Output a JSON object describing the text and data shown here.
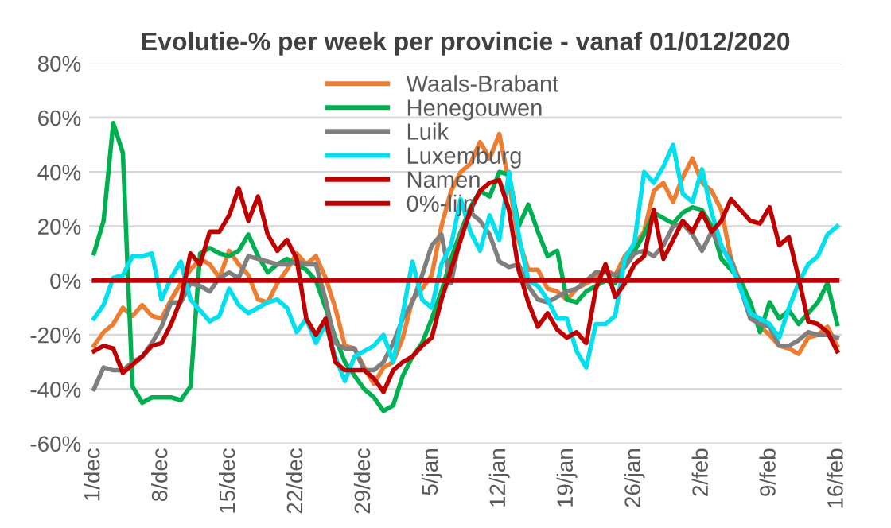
{
  "chart_data": {
    "type": "line",
    "title": "Evolutie-% per week per provincie - vanaf 01/012/2020",
    "categories": [
      "1/dec",
      null,
      null,
      null,
      null,
      null,
      null,
      "8/dec",
      null,
      null,
      null,
      null,
      null,
      null,
      "15/dec",
      null,
      null,
      null,
      null,
      null,
      null,
      "22/dec",
      null,
      null,
      null,
      null,
      null,
      null,
      "29/dec",
      null,
      null,
      null,
      null,
      null,
      null,
      "5/jan",
      null,
      null,
      null,
      null,
      null,
      null,
      "12/jan",
      null,
      null,
      null,
      null,
      null,
      null,
      "19/jan",
      null,
      null,
      null,
      null,
      null,
      null,
      "26/jan",
      null,
      null,
      null,
      null,
      null,
      null,
      "2/feb",
      null,
      null,
      null,
      null,
      null,
      null,
      "9/feb",
      null,
      null,
      null,
      null,
      null,
      null,
      "16/feb"
    ],
    "series": [
      {
        "name": "Waals-Brabant",
        "color": "#ed7d31",
        "values": [
          -24,
          -19,
          -16,
          -10,
          -13,
          -9,
          -13,
          -14,
          -7,
          -1,
          4,
          8,
          6,
          1,
          11,
          6,
          2,
          -7,
          -8,
          -1,
          4,
          10,
          6,
          9,
          1,
          -10,
          -24,
          -25,
          -32,
          -38,
          -32,
          -30,
          -21,
          -7,
          -3,
          2,
          20,
          33,
          40,
          43,
          51,
          45,
          54,
          36,
          15,
          4,
          4,
          -3,
          -4,
          -7,
          -3,
          -1,
          1,
          4,
          2,
          9,
          13,
          18,
          33,
          36,
          29,
          38,
          45,
          36,
          33,
          26,
          8,
          -1,
          -10,
          -17,
          -20,
          -24,
          -25,
          -27,
          -21,
          -20,
          -17,
          -24
        ]
      },
      {
        "name": "Henegouwen",
        "color": "#00b050",
        "values": [
          10,
          22,
          58,
          47,
          -39,
          -45,
          -43,
          -43,
          -43,
          -44,
          -39,
          10,
          12,
          10,
          9,
          11,
          17,
          9,
          3,
          6,
          8,
          6,
          4,
          0,
          -10,
          -21,
          -30,
          -35,
          -40,
          -43,
          -48,
          -46,
          -35,
          -28,
          -23,
          -14,
          -4,
          8,
          18,
          27,
          33,
          31,
          40,
          39,
          20,
          28,
          18,
          9,
          11,
          -7,
          -8,
          -4,
          -2,
          0,
          -1,
          6,
          11,
          17,
          25,
          23,
          21,
          25,
          27,
          26,
          20,
          8,
          4,
          0,
          -8,
          -19,
          -8,
          -14,
          -11,
          -16,
          -12,
          -8,
          -1,
          -16
        ]
      },
      {
        "name": "Luik",
        "color": "#7f7f7f",
        "values": [
          -40,
          -32,
          -33,
          -33,
          -30,
          -28,
          -23,
          -17,
          -8,
          -8,
          -1,
          -2,
          -4,
          1,
          3,
          1,
          9,
          8,
          7,
          6,
          6,
          7,
          6,
          6,
          -7,
          -23,
          -25,
          -25,
          -33,
          -33,
          -30,
          -23,
          -14,
          -8,
          2,
          13,
          17,
          -1,
          17,
          25,
          22,
          17,
          7,
          5,
          6,
          -2,
          -7,
          -8,
          -6,
          -4,
          -3,
          0,
          3,
          3,
          2,
          5,
          10,
          11,
          9,
          13,
          20,
          21,
          17,
          11,
          18,
          12,
          8,
          -3,
          -14,
          -16,
          -17,
          -24,
          -24,
          -22,
          -19,
          -20,
          -20,
          -21
        ]
      },
      {
        "name": "Luxemburg",
        "color": "#00e0ee",
        "values": [
          -14,
          -9,
          1,
          2,
          9,
          9,
          10,
          -7,
          1,
          7,
          -7,
          -11,
          -15,
          -13,
          -3,
          -9,
          -12,
          -10,
          -8,
          -7,
          -10,
          -19,
          -14,
          -23,
          -16,
          -28,
          -37,
          -28,
          -26,
          -24,
          -20,
          -30,
          -12,
          7,
          -7,
          -10,
          6,
          13,
          30,
          18,
          11,
          24,
          15,
          40,
          17,
          0,
          -2,
          -7,
          -14,
          -14,
          -26,
          -32,
          -16,
          -16,
          -13,
          8,
          14,
          40,
          36,
          42,
          50,
          32,
          29,
          41,
          25,
          13,
          6,
          -3,
          -12,
          -14,
          -16,
          -21,
          -10,
          -1,
          6,
          9,
          17,
          20
        ]
      },
      {
        "name": "Namen",
        "color": "#c00000",
        "values": [
          -26,
          -24,
          -25,
          -34,
          -31,
          -28,
          -24,
          -23,
          -16,
          -7,
          10,
          6,
          18,
          18,
          24,
          34,
          22,
          31,
          17,
          11,
          15,
          8,
          -14,
          -20,
          -14,
          -30,
          -33,
          -33,
          -33,
          -36,
          -41,
          -33,
          -30,
          -28,
          -24,
          -21,
          -7,
          4,
          15,
          26,
          33,
          36,
          37,
          26,
          4,
          -8,
          -17,
          -12,
          -18,
          -21,
          -19,
          -23,
          -3,
          6,
          -6,
          -1,
          6,
          9,
          26,
          8,
          15,
          22,
          18,
          25,
          18,
          22,
          30,
          26,
          22,
          21,
          27,
          13,
          16,
          1,
          -15,
          -16,
          -19,
          -26
        ]
      },
      {
        "name": "0%-lijn",
        "color": "#c00000",
        "values": [
          0,
          0,
          0,
          0,
          0,
          0,
          0,
          0,
          0,
          0,
          0,
          0,
          0,
          0,
          0,
          0,
          0,
          0,
          0,
          0,
          0,
          0,
          0,
          0,
          0,
          0,
          0,
          0,
          0,
          0,
          0,
          0,
          0,
          0,
          0,
          0,
          0,
          0,
          0,
          0,
          0,
          0,
          0,
          0,
          0,
          0,
          0,
          0,
          0,
          0,
          0,
          0,
          0,
          0,
          0,
          0,
          0,
          0,
          0,
          0,
          0,
          0,
          0,
          0,
          0,
          0,
          0,
          0,
          0,
          0,
          0,
          0,
          0,
          0,
          0,
          0,
          0,
          0
        ]
      }
    ],
    "ylim": [
      -60,
      80
    ],
    "yticks": [
      {
        "value": -60,
        "label": "-60%"
      },
      {
        "value": -40,
        "label": "-40%"
      },
      {
        "value": -20,
        "label": "-20%"
      },
      {
        "value": 0,
        "label": "0%"
      },
      {
        "value": 20,
        "label": "20%"
      },
      {
        "value": 40,
        "label": "40%"
      },
      {
        "value": 60,
        "label": "60%"
      },
      {
        "value": 80,
        "label": "80%"
      }
    ],
    "grid": "y",
    "legend": "top",
    "marker": "none",
    "line_style": "solid"
  }
}
